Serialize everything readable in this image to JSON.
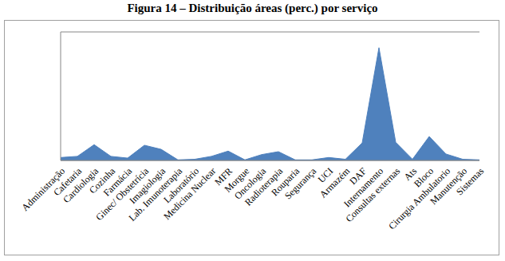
{
  "chart_data": {
    "type": "area",
    "title": "Figura 14 – Distribuição áreas (perc.) por serviço",
    "categories": [
      "Administração",
      "Cafetaria",
      "Cardiologia",
      "Cozinha",
      "Farmácia",
      "Ginec/ Obstetrícia",
      "Imagiologia",
      "Lab. Imunoterapia",
      "Laboratório",
      "Medicina Nuclear",
      "MFR",
      "Morgue",
      "Oncologia",
      "Radioterapia",
      "Rouparia",
      "Segurança",
      "UCI",
      "Armazém",
      "DAF",
      "Internamento",
      "Consultas externas",
      "Ats",
      "Bloco",
      "Cirurgia Ambulatorio",
      "Manutenção",
      "Sistemas"
    ],
    "values": [
      1.0,
      1.4,
      5.4,
      1.4,
      0.8,
      5.2,
      3.8,
      0.2,
      0.4,
      1.4,
      3.2,
      0.2,
      2.0,
      3.0,
      0.2,
      0.2,
      1.0,
      0.4,
      6.0,
      38.6,
      6.2,
      0.4,
      8.2,
      2.2,
      0.4,
      0.2
    ],
    "color": "#4f81bd",
    "ylim": [
      0,
      44
    ],
    "yticks": [
      0,
      2,
      4,
      6,
      8,
      10,
      12,
      14,
      16,
      18,
      20,
      22,
      24,
      26,
      28,
      30,
      32,
      34,
      36,
      38,
      40,
      42,
      44
    ],
    "grid": true,
    "tick_labels": "x"
  }
}
